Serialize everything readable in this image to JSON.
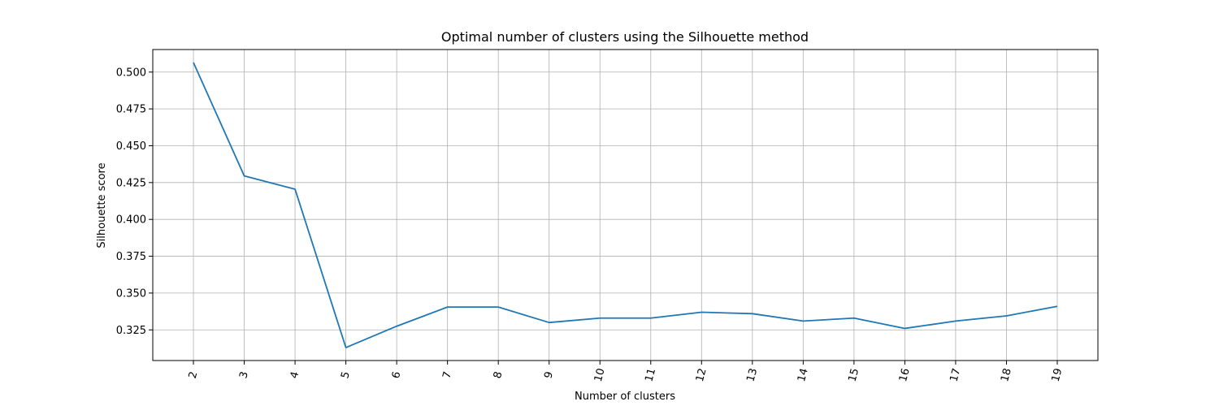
{
  "chart_data": {
    "type": "line",
    "title": "Optimal number of clusters using the Silhouette method",
    "xlabel": "Number of clusters",
    "ylabel": "Silhouette score",
    "x": [
      2,
      3,
      4,
      5,
      6,
      7,
      8,
      9,
      10,
      11,
      12,
      13,
      14,
      15,
      16,
      17,
      18,
      19
    ],
    "series": [
      {
        "values": [
          0.5065,
          0.4295,
          0.4205,
          0.313,
          0.3275,
          0.3405,
          0.3405,
          0.33,
          0.333,
          0.333,
          0.337,
          0.336,
          0.331,
          0.333,
          0.326,
          0.331,
          0.3345,
          0.341
        ],
        "color": "#1f77b4"
      }
    ],
    "yticks": [
      "0.325",
      "0.350",
      "0.375",
      "0.400",
      "0.425",
      "0.450",
      "0.475",
      "0.500"
    ],
    "xticks": [
      "2",
      "3",
      "4",
      "5",
      "6",
      "7",
      "8",
      "9",
      "10",
      "11",
      "12",
      "13",
      "14",
      "15",
      "16",
      "17",
      "18",
      "19"
    ],
    "xlim": [
      1.2,
      19.8
    ],
    "ylim": [
      0.3042,
      0.5153
    ],
    "grid": true,
    "xtick_rotation": "slanted"
  }
}
